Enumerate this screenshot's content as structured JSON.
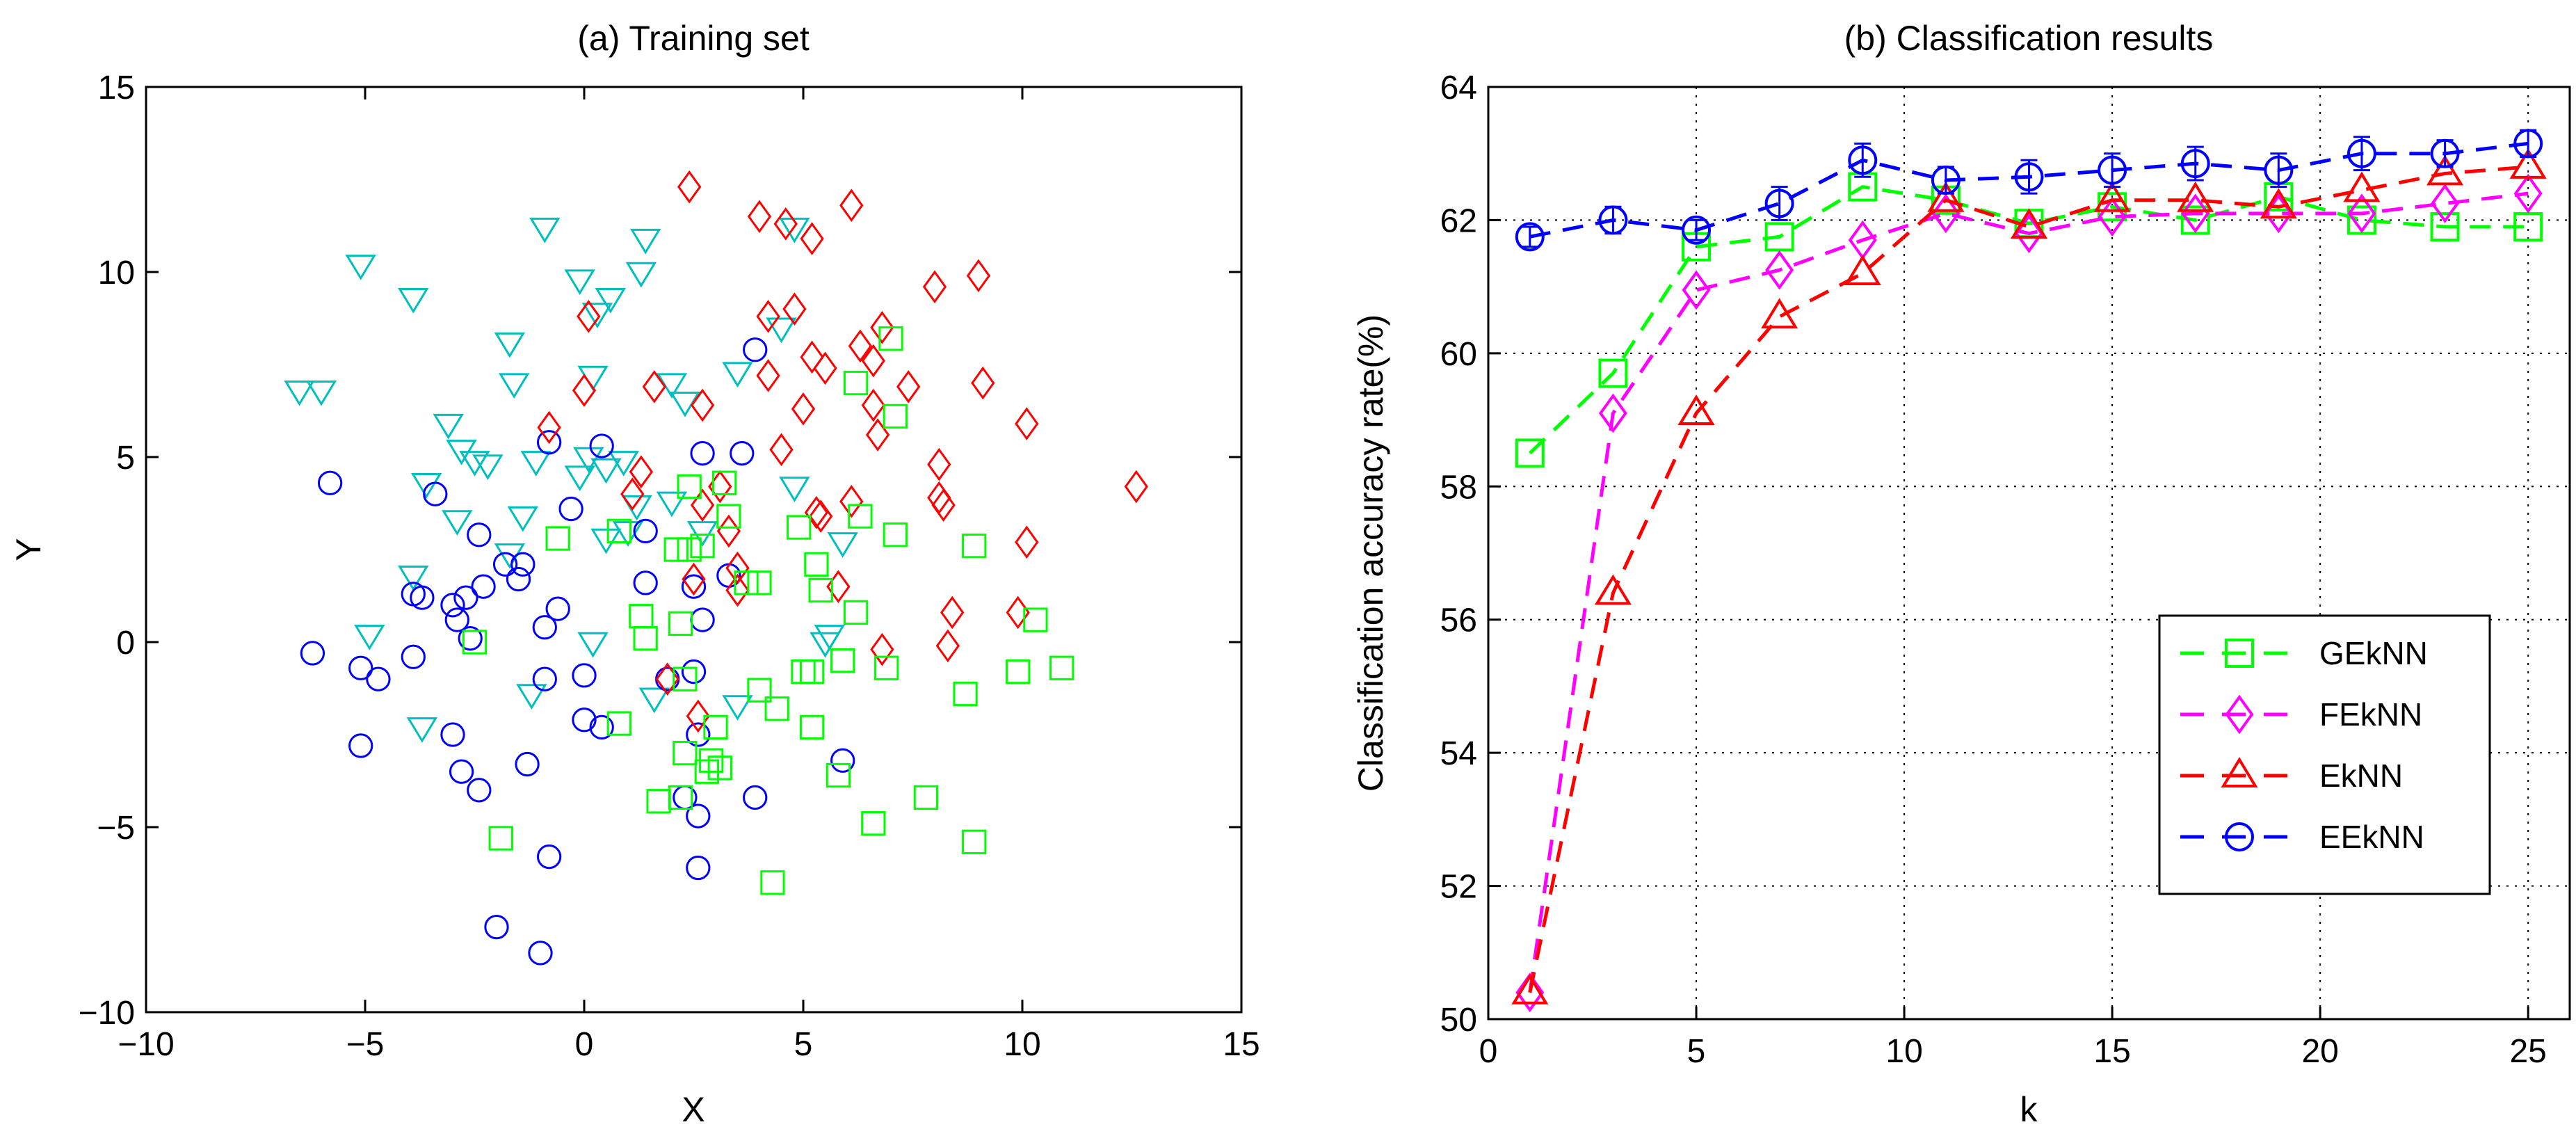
{
  "chart_data": [
    {
      "type": "scatter",
      "title": "(a) Training set",
      "xlabel": "X",
      "ylabel": "Y",
      "xlim": [
        -10,
        15
      ],
      "ylim": [
        -10,
        15
      ],
      "xticks": [
        "−10",
        "−5",
        "0",
        "5",
        "10",
        "15"
      ],
      "yticks": [
        "−10",
        "−5",
        "0",
        "5",
        "10",
        "15"
      ],
      "grid": false,
      "series": [
        {
          "name": "class-triangle-down",
          "marker": "triangle-down",
          "color": "#00BFBF",
          "points": [
            [
              -6.5,
              6.8
            ],
            [
              -6.0,
              6.8
            ],
            [
              -5.1,
              10.2
            ],
            [
              -3.9,
              9.3
            ],
            [
              -3.1,
              5.9
            ],
            [
              -2.8,
              5.2
            ],
            [
              -2.5,
              4.9
            ],
            [
              -2.2,
              4.8
            ],
            [
              -3.6,
              4.3
            ],
            [
              -2.9,
              3.3
            ],
            [
              -3.9,
              1.8
            ],
            [
              -4.9,
              0.2
            ],
            [
              -3.7,
              -2.3
            ],
            [
              -1.7,
              8.1
            ],
            [
              -1.6,
              7.0
            ],
            [
              -0.9,
              11.2
            ],
            [
              -1.1,
              4.9
            ],
            [
              -1.4,
              3.4
            ],
            [
              -1.7,
              2.4
            ],
            [
              -1.2,
              -1.4
            ],
            [
              -0.1,
              9.8
            ],
            [
              0.6,
              9.3
            ],
            [
              0.3,
              8.9
            ],
            [
              0.2,
              7.2
            ],
            [
              0.1,
              5.0
            ],
            [
              0.9,
              4.9
            ],
            [
              0.5,
              4.7
            ],
            [
              -0.1,
              4.5
            ],
            [
              1.3,
              10.0
            ],
            [
              1.4,
              10.9
            ],
            [
              2.0,
              7.0
            ],
            [
              2.3,
              6.5
            ],
            [
              1.2,
              3.7
            ],
            [
              1.0,
              3.0
            ],
            [
              0.5,
              2.8
            ],
            [
              2.0,
              3.8
            ],
            [
              2.7,
              3.0
            ],
            [
              1.6,
              -1.5
            ],
            [
              0.2,
              0.0
            ],
            [
              3.5,
              -1.7
            ],
            [
              3.5,
              7.3
            ],
            [
              4.5,
              8.5
            ],
            [
              4.8,
              4.2
            ],
            [
              4.8,
              11.2
            ],
            [
              5.9,
              2.7
            ],
            [
              5.5,
              0.0
            ],
            [
              5.6,
              0.2
            ]
          ]
        },
        {
          "name": "class-circle",
          "marker": "circle",
          "color": "#0000FF",
          "points": [
            [
              -5.8,
              4.3
            ],
            [
              -6.2,
              -0.3
            ],
            [
              -5.1,
              -0.7
            ],
            [
              -4.7,
              -1.0
            ],
            [
              -3.9,
              -0.4
            ],
            [
              -5.1,
              -2.8
            ],
            [
              -3.9,
              1.3
            ],
            [
              -3.7,
              1.2
            ],
            [
              -3.4,
              4.0
            ],
            [
              -2.4,
              2.9
            ],
            [
              -2.7,
              1.2
            ],
            [
              -2.3,
              1.5
            ],
            [
              -2.9,
              0.6
            ],
            [
              -3.0,
              1.0
            ],
            [
              -1.8,
              2.1
            ],
            [
              -1.4,
              2.1
            ],
            [
              -1.5,
              1.7
            ],
            [
              -2.6,
              0.1
            ],
            [
              -3.0,
              -2.5
            ],
            [
              -2.8,
              -3.5
            ],
            [
              -2.4,
              -4.0
            ],
            [
              -1.3,
              -3.3
            ],
            [
              -2.0,
              -7.7
            ],
            [
              -1.0,
              -8.4
            ],
            [
              -0.8,
              -5.8
            ],
            [
              -0.8,
              5.4
            ],
            [
              -0.3,
              3.6
            ],
            [
              0.4,
              5.3
            ],
            [
              -0.6,
              0.9
            ],
            [
              -0.9,
              0.4
            ],
            [
              -0.9,
              -1.0
            ],
            [
              0.0,
              -0.9
            ],
            [
              0.0,
              -2.1
            ],
            [
              0.4,
              -2.3
            ],
            [
              1.4,
              3.0
            ],
            [
              1.4,
              1.6
            ],
            [
              1.9,
              -1.0
            ],
            [
              2.3,
              -4.2
            ],
            [
              2.5,
              -0.8
            ],
            [
              2.5,
              1.5
            ],
            [
              2.7,
              0.6
            ],
            [
              2.7,
              5.1
            ],
            [
              3.3,
              1.8
            ],
            [
              3.6,
              5.1
            ],
            [
              2.6,
              -2.5
            ],
            [
              2.6,
              -4.7
            ],
            [
              2.6,
              -6.1
            ],
            [
              3.9,
              -4.2
            ],
            [
              3.9,
              7.9
            ],
            [
              5.9,
              -3.2
            ]
          ]
        },
        {
          "name": "class-diamond",
          "marker": "diamond",
          "color": "#FF0000",
          "points": [
            [
              -0.8,
              5.8
            ],
            [
              0.1,
              8.8
            ],
            [
              0.0,
              6.8
            ],
            [
              1.1,
              4.0
            ],
            [
              1.3,
              4.6
            ],
            [
              1.6,
              6.9
            ],
            [
              1.9,
              -1.0
            ],
            [
              2.4,
              12.3
            ],
            [
              2.5,
              1.7
            ],
            [
              2.7,
              3.7
            ],
            [
              2.6,
              -2.0
            ],
            [
              2.7,
              6.4
            ],
            [
              3.1,
              4.2
            ],
            [
              3.3,
              3.0
            ],
            [
              3.5,
              2.0
            ],
            [
              3.5,
              1.4
            ],
            [
              4.0,
              11.5
            ],
            [
              4.2,
              8.8
            ],
            [
              4.2,
              7.2
            ],
            [
              4.5,
              5.2
            ],
            [
              4.6,
              11.3
            ],
            [
              4.8,
              9.0
            ],
            [
              5.0,
              6.3
            ],
            [
              5.2,
              10.9
            ],
            [
              5.2,
              7.7
            ],
            [
              5.5,
              7.4
            ],
            [
              5.3,
              3.5
            ],
            [
              5.4,
              3.4
            ],
            [
              5.8,
              1.5
            ],
            [
              6.1,
              11.8
            ],
            [
              6.1,
              3.8
            ],
            [
              6.3,
              8.0
            ],
            [
              6.6,
              7.6
            ],
            [
              6.6,
              6.4
            ],
            [
              6.7,
              5.6
            ],
            [
              6.8,
              8.5
            ],
            [
              6.8,
              -0.2
            ],
            [
              7.4,
              6.9
            ],
            [
              8.0,
              9.6
            ],
            [
              8.1,
              4.8
            ],
            [
              8.1,
              3.9
            ],
            [
              8.2,
              3.7
            ],
            [
              8.4,
              0.8
            ],
            [
              8.3,
              -0.1
            ],
            [
              9.0,
              9.9
            ],
            [
              9.1,
              7.0
            ],
            [
              9.9,
              0.8
            ],
            [
              10.1,
              5.9
            ],
            [
              10.1,
              2.7
            ],
            [
              12.6,
              4.2
            ]
          ]
        },
        {
          "name": "class-square",
          "marker": "square",
          "color": "#00FF00",
          "points": [
            [
              -2.5,
              0.0
            ],
            [
              -0.6,
              2.8
            ],
            [
              -1.9,
              -5.3
            ],
            [
              0.8,
              3.0
            ],
            [
              0.8,
              -2.2
            ],
            [
              1.3,
              0.7
            ],
            [
              1.4,
              0.1
            ],
            [
              1.7,
              -4.3
            ],
            [
              2.2,
              -4.2
            ],
            [
              2.1,
              2.5
            ],
            [
              2.2,
              0.5
            ],
            [
              2.3,
              -1.0
            ],
            [
              2.4,
              4.2
            ],
            [
              2.3,
              -3.0
            ],
            [
              2.4,
              2.5
            ],
            [
              2.7,
              2.6
            ],
            [
              2.8,
              -3.5
            ],
            [
              2.9,
              -3.2
            ],
            [
              3.0,
              -2.3
            ],
            [
              3.1,
              -3.4
            ],
            [
              3.2,
              4.3
            ],
            [
              3.3,
              3.4
            ],
            [
              3.7,
              1.6
            ],
            [
              4.0,
              1.6
            ],
            [
              4.0,
              -1.3
            ],
            [
              4.3,
              -6.5
            ],
            [
              4.4,
              -1.8
            ],
            [
              4.9,
              3.1
            ],
            [
              5.0,
              -0.8
            ],
            [
              5.2,
              -2.3
            ],
            [
              5.2,
              -0.8
            ],
            [
              5.3,
              2.1
            ],
            [
              5.4,
              1.4
            ],
            [
              5.8,
              -3.6
            ],
            [
              5.9,
              -0.5
            ],
            [
              6.2,
              7.0
            ],
            [
              6.2,
              0.8
            ],
            [
              6.3,
              3.4
            ],
            [
              6.6,
              -4.9
            ],
            [
              7.0,
              8.2
            ],
            [
              6.9,
              -0.7
            ],
            [
              7.1,
              6.1
            ],
            [
              7.1,
              2.9
            ],
            [
              7.8,
              -4.2
            ],
            [
              8.7,
              -1.4
            ],
            [
              8.9,
              2.6
            ],
            [
              8.9,
              -5.4
            ],
            [
              9.9,
              -0.8
            ],
            [
              10.3,
              0.6
            ],
            [
              10.9,
              -0.7
            ]
          ]
        }
      ]
    },
    {
      "type": "line",
      "title": "(b) Classification results",
      "xlabel": "k",
      "ylabel": "Classification accuracy rate(%)",
      "xlim": [
        0,
        26
      ],
      "ylim": [
        50,
        64
      ],
      "xticks": [
        "0",
        "5",
        "10",
        "15",
        "20",
        "25"
      ],
      "yticks": [
        "50",
        "52",
        "54",
        "56",
        "58",
        "60",
        "62",
        "64"
      ],
      "grid": true,
      "legend_position": "bottom-right",
      "x": [
        1,
        3,
        5,
        7,
        9,
        11,
        13,
        15,
        17,
        19,
        21,
        23,
        25
      ],
      "series": [
        {
          "name": "GEkNN",
          "label": "GEkNN",
          "marker": "square",
          "color": "#00FF00",
          "values": [
            58.5,
            59.7,
            61.6,
            61.75,
            62.5,
            62.3,
            61.95,
            62.2,
            62.0,
            62.35,
            62.0,
            61.9,
            61.9
          ]
        },
        {
          "name": "FEkNN",
          "label": "FEkNN",
          "marker": "diamond",
          "color": "#FF00FF",
          "values": [
            50.4,
            59.1,
            60.95,
            61.25,
            61.7,
            62.1,
            61.8,
            62.05,
            62.1,
            62.1,
            62.1,
            62.25,
            62.4
          ]
        },
        {
          "name": "EkNN",
          "label": "EkNN",
          "marker": "triangle-up",
          "color": "#FF0000",
          "values": [
            50.4,
            56.4,
            59.1,
            60.55,
            61.2,
            62.3,
            61.9,
            62.3,
            62.3,
            62.2,
            62.45,
            62.7,
            62.8
          ]
        },
        {
          "name": "EEkNN",
          "label": "EEkNN",
          "marker": "circle",
          "color": "#0000FF",
          "values": [
            61.75,
            62.0,
            61.85,
            62.25,
            62.9,
            62.6,
            62.65,
            62.75,
            62.85,
            62.75,
            63.0,
            63.0,
            63.15
          ],
          "errors": [
            0.15,
            0.2,
            0.15,
            0.25,
            0.25,
            0.2,
            0.25,
            0.25,
            0.25,
            0.25,
            0.25,
            0.2,
            0.2
          ]
        }
      ]
    }
  ]
}
